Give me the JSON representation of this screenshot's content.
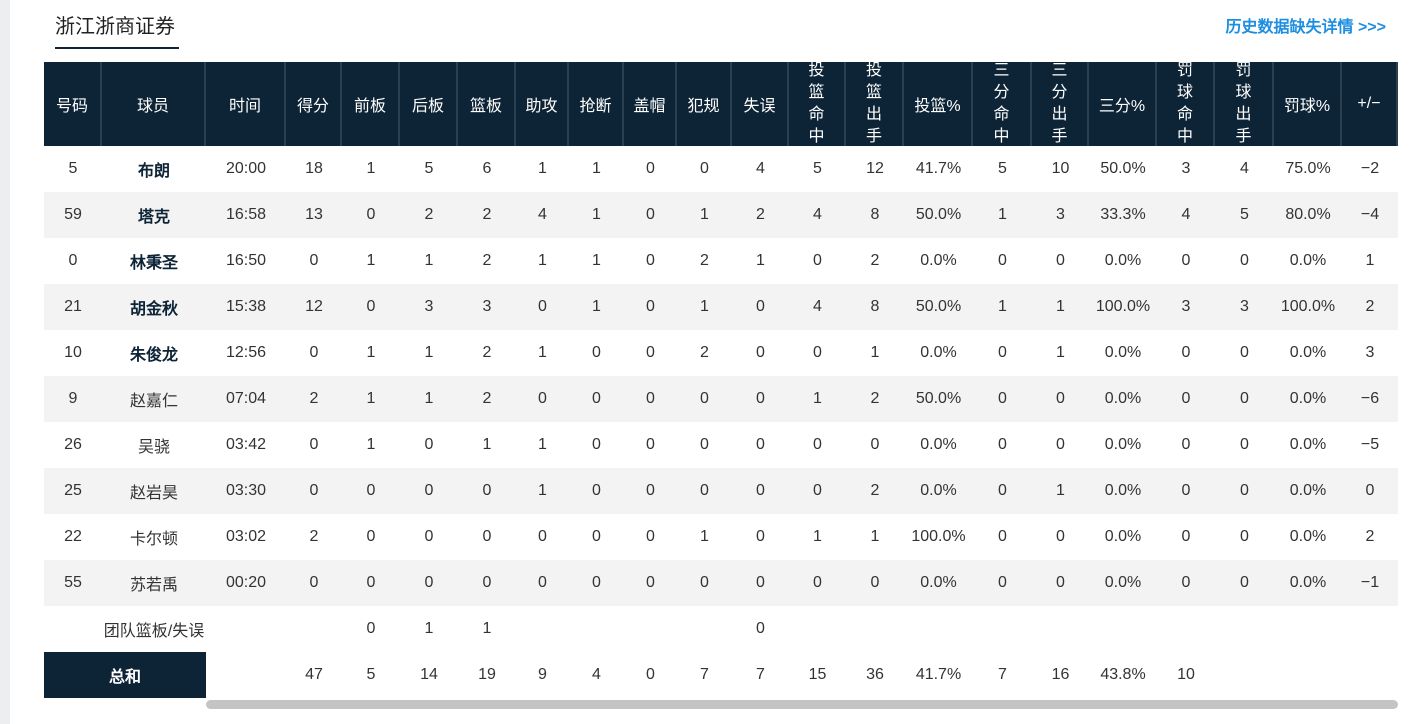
{
  "header": {
    "title": "浙江浙商证券",
    "link": "历史数据缺失详情 >>>"
  },
  "table": {
    "columns": [
      "号码",
      "球员",
      "时间",
      "得分",
      "前板",
      "后板",
      "篮板",
      "助攻",
      "抢断",
      "盖帽",
      "犯规",
      "失误",
      "投篮命中",
      "投篮出手",
      "投篮%",
      "三分命中",
      "三分出手",
      "三分%",
      "罚球命中",
      "罚球出手",
      "罚球%",
      "+/−"
    ],
    "rows": [
      [
        "5",
        "布朗",
        "20:00",
        "18",
        "1",
        "5",
        "6",
        "1",
        "1",
        "0",
        "0",
        "4",
        "5",
        "12",
        "41.7%",
        "5",
        "10",
        "50.0%",
        "3",
        "4",
        "75.0%",
        "−2"
      ],
      [
        "59",
        "塔克",
        "16:58",
        "13",
        "0",
        "2",
        "2",
        "4",
        "1",
        "0",
        "1",
        "2",
        "4",
        "8",
        "50.0%",
        "1",
        "3",
        "33.3%",
        "4",
        "5",
        "80.0%",
        "−4"
      ],
      [
        "0",
        "林秉圣",
        "16:50",
        "0",
        "1",
        "1",
        "2",
        "1",
        "1",
        "0",
        "2",
        "1",
        "0",
        "2",
        "0.0%",
        "0",
        "0",
        "0.0%",
        "0",
        "0",
        "0.0%",
        "1"
      ],
      [
        "21",
        "胡金秋",
        "15:38",
        "12",
        "0",
        "3",
        "3",
        "0",
        "1",
        "0",
        "1",
        "0",
        "4",
        "8",
        "50.0%",
        "1",
        "1",
        "100.0%",
        "3",
        "3",
        "100.0%",
        "2"
      ],
      [
        "10",
        "朱俊龙",
        "12:56",
        "0",
        "1",
        "1",
        "2",
        "1",
        "0",
        "0",
        "2",
        "0",
        "0",
        "1",
        "0.0%",
        "0",
        "1",
        "0.0%",
        "0",
        "0",
        "0.0%",
        "3"
      ],
      [
        "9",
        "赵嘉仁",
        "07:04",
        "2",
        "1",
        "1",
        "2",
        "0",
        "0",
        "0",
        "0",
        "0",
        "1",
        "2",
        "50.0%",
        "0",
        "0",
        "0.0%",
        "0",
        "0",
        "0.0%",
        "−6"
      ],
      [
        "26",
        "吴骁",
        "03:42",
        "0",
        "1",
        "0",
        "1",
        "1",
        "0",
        "0",
        "0",
        "0",
        "0",
        "0",
        "0.0%",
        "0",
        "0",
        "0.0%",
        "0",
        "0",
        "0.0%",
        "−5"
      ],
      [
        "25",
        "赵岩昊",
        "03:30",
        "0",
        "0",
        "0",
        "0",
        "1",
        "0",
        "0",
        "0",
        "0",
        "0",
        "2",
        "0.0%",
        "0",
        "1",
        "0.0%",
        "0",
        "0",
        "0.0%",
        "0"
      ],
      [
        "22",
        "卡尔顿",
        "03:02",
        "2",
        "0",
        "0",
        "0",
        "0",
        "0",
        "0",
        "1",
        "0",
        "1",
        "1",
        "100.0%",
        "0",
        "0",
        "0.0%",
        "0",
        "0",
        "0.0%",
        "2"
      ],
      [
        "55",
        "苏若禹",
        "00:20",
        "0",
        "0",
        "0",
        "0",
        "0",
        "0",
        "0",
        "0",
        "0",
        "0",
        "0",
        "0.0%",
        "0",
        "0",
        "0.0%",
        "0",
        "0",
        "0.0%",
        "−1"
      ]
    ],
    "team": [
      null,
      "团队篮板/失误",
      null,
      null,
      "0",
      "1",
      "1",
      null,
      null,
      null,
      null,
      "0"
    ],
    "total": {
      "label": "总和",
      "cells": [
        null,
        "47",
        "5",
        "14",
        "19",
        "9",
        "4",
        "0",
        "7",
        "7",
        "15",
        "36",
        "41.7%",
        "7",
        "16",
        "43.8%",
        "10"
      ]
    }
  }
}
